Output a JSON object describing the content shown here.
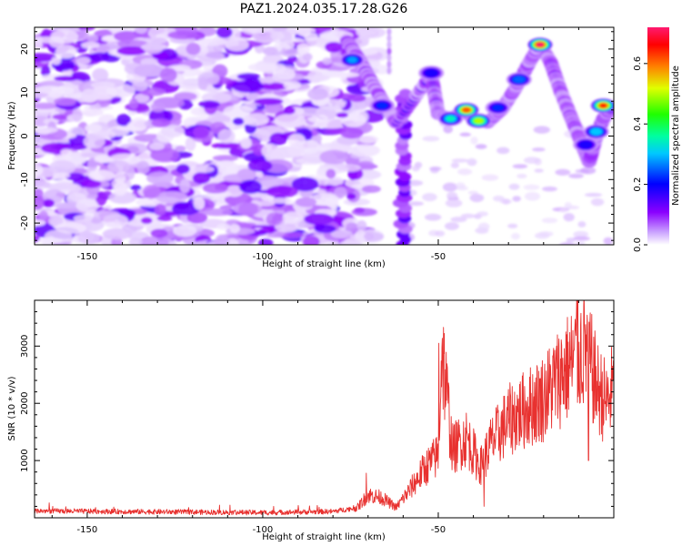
{
  "figure": {
    "title": "PAZ1.2024.035.17.28.G26"
  },
  "chart_data": [
    {
      "type": "heatmap",
      "xlabel": "Height of straight line (km)",
      "ylabel": "Frequency (Hz)",
      "xlim": [
        -165,
        0
      ],
      "ylim": [
        -25,
        25
      ],
      "xticks": [
        -150,
        -100,
        -50
      ],
      "yticks": [
        -20,
        -10,
        0,
        10,
        20
      ],
      "grid": false,
      "colorbar": {
        "label": "Normalized spectral amplitude",
        "range": [
          0,
          0.72
        ],
        "ticks": [
          0.0,
          0.2,
          0.4,
          0.6
        ],
        "colormap": [
          "#ffffff",
          "#8a00ff",
          "#0000ff",
          "#00ffff",
          "#00ff00",
          "#ffff00",
          "#ff0000",
          "#ff0080"
        ]
      },
      "ridge": {
        "description_hidden": true,
        "points": [
          [
            -76,
            22
          ],
          [
            -72,
            17
          ],
          [
            -68,
            11
          ],
          [
            -65,
            7
          ],
          [
            -62,
            3
          ],
          [
            -52,
            14
          ],
          [
            -50,
            5
          ],
          [
            -46,
            4
          ],
          [
            -43,
            6
          ],
          [
            -40,
            4
          ],
          [
            -36,
            3
          ],
          [
            -32,
            6
          ],
          [
            -28,
            11
          ],
          [
            -24,
            17
          ],
          [
            -21,
            21
          ],
          [
            -18,
            17
          ],
          [
            -15,
            10
          ],
          [
            -12,
            4
          ],
          [
            -9,
            -2
          ],
          [
            -7,
            -6
          ],
          [
            -5,
            0
          ],
          [
            -3,
            4
          ],
          [
            -1,
            6
          ]
        ],
        "peaks": [
          {
            "x": -74.5,
            "y": 17.5,
            "amp": 0.28
          },
          {
            "x": -66,
            "y": 7,
            "amp": 0.22
          },
          {
            "x": -52,
            "y": 14.5,
            "amp": 0.18
          },
          {
            "x": -46.5,
            "y": 4,
            "amp": 0.35
          },
          {
            "x": -42,
            "y": 6,
            "amp": 0.62
          },
          {
            "x": -38.5,
            "y": 3.5,
            "amp": 0.5
          },
          {
            "x": -33,
            "y": 6.5,
            "amp": 0.22
          },
          {
            "x": -27,
            "y": 13,
            "amp": 0.25
          },
          {
            "x": -21,
            "y": 21,
            "amp": 0.72
          },
          {
            "x": -8,
            "y": -2,
            "amp": 0.18
          },
          {
            "x": -5,
            "y": 1,
            "amp": 0.3
          },
          {
            "x": -3,
            "y": 7,
            "amp": 0.65
          }
        ],
        "vertical_band": {
          "x": -60,
          "from": -25,
          "to": 10
        },
        "marker_band": {
          "x": -64,
          "from": 15,
          "to": 25
        }
      }
    },
    {
      "type": "line",
      "xlabel": "Height of straight line (km)",
      "ylabel": "SNR (10 * v/v)",
      "xlim": [
        -165,
        0
      ],
      "ylim": [
        0,
        3800
      ],
      "xticks": [
        -150,
        -100,
        -50
      ],
      "yticks": [
        1000,
        2000,
        3000
      ],
      "color": "#e8312f",
      "trend": {
        "x": [
          -165,
          -120,
          -100,
          -80,
          -73,
          -70,
          -66,
          -62,
          -58,
          -54,
          -50,
          -49,
          -46,
          -42,
          -38,
          -35,
          -30,
          -25,
          -20,
          -15,
          -12,
          -8,
          -5,
          -2,
          0
        ],
        "y": [
          120,
          100,
          90,
          110,
          180,
          400,
          350,
          180,
          500,
          850,
          1100,
          3000,
          1200,
          1400,
          900,
          1300,
          1700,
          1900,
          2100,
          2500,
          2700,
          3000,
          2300,
          2000,
          2300
        ]
      },
      "spikes": [
        {
          "x": -49.8,
          "y": 3050
        },
        {
          "x": -10.5,
          "y": 3800
        },
        {
          "x": -7.2,
          "y": 1000
        },
        {
          "x": -70.5,
          "y": 780
        },
        {
          "x": -37,
          "y": 200
        }
      ]
    }
  ]
}
